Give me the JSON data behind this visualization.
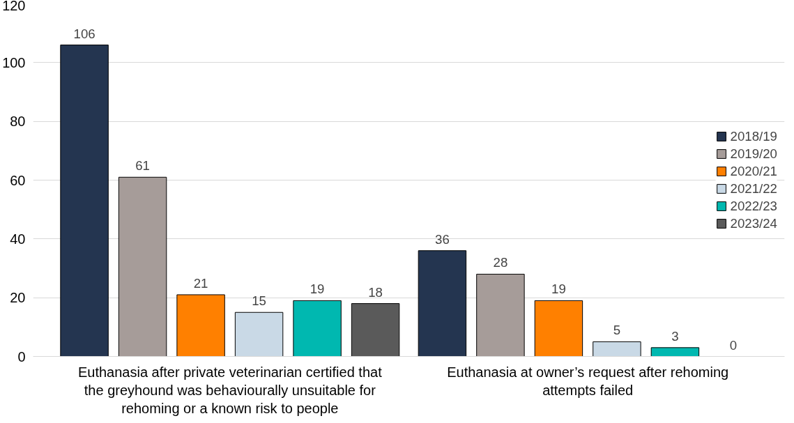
{
  "chart_data": {
    "type": "bar",
    "categories": [
      "Euthanasia after private veterinarian certified that the greyhound was behaviourally unsuitable for rehoming or a known risk to people",
      "Euthanasia at owner’s request after rehoming attempts failed"
    ],
    "series": [
      {
        "name": "2018/19",
        "color": "#243550",
        "values": [
          106,
          36
        ]
      },
      {
        "name": "2019/20",
        "color": "#a69c99",
        "values": [
          61,
          28
        ]
      },
      {
        "name": "2020/21",
        "color": "#ff8000",
        "values": [
          21,
          19
        ]
      },
      {
        "name": "2021/22",
        "color": "#c9d9e6",
        "values": [
          15,
          5
        ]
      },
      {
        "name": "2022/23",
        "color": "#00b8b0",
        "values": [
          19,
          3
        ]
      },
      {
        "name": "2023/24",
        "color": "#5a5a5a",
        "values": [
          18,
          0
        ]
      }
    ],
    "ylim": [
      0,
      120
    ],
    "yticks": [
      0,
      20,
      40,
      60,
      80,
      100,
      120
    ],
    "grid": "y",
    "legend": "right",
    "data_labels": true
  }
}
